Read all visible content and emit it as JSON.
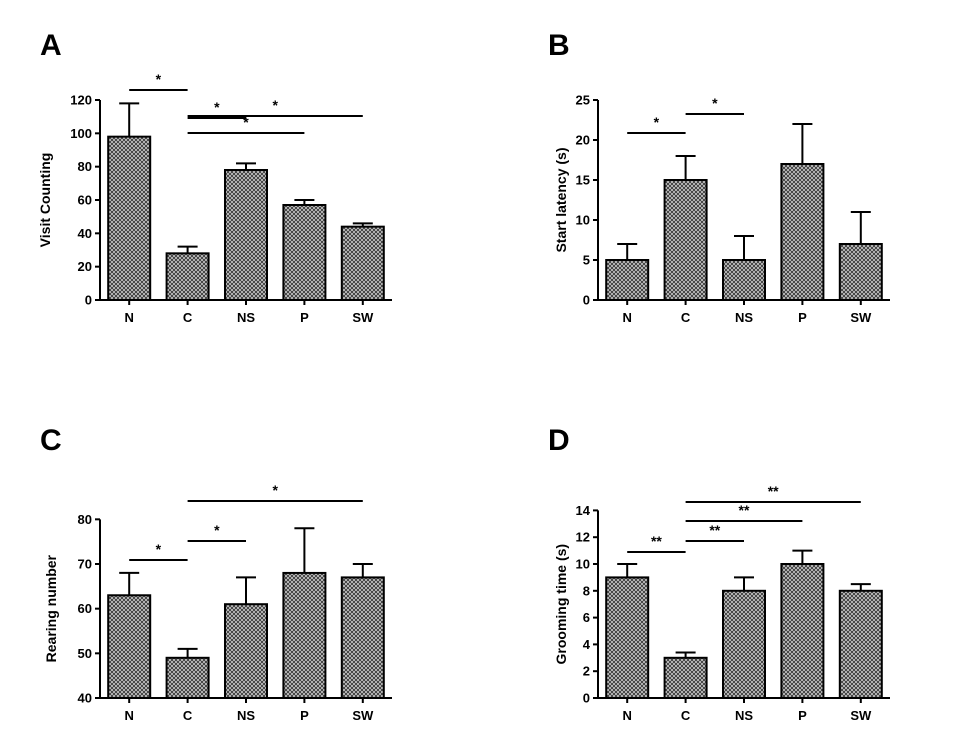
{
  "chart_data": [
    {
      "type": "bar",
      "panel_label": "A",
      "ylabel": "Visit Counting",
      "categories": [
        "N",
        "C",
        "NS",
        "P",
        "SW"
      ],
      "values": [
        98,
        28,
        78,
        57,
        44
      ],
      "errors": [
        20,
        4,
        4,
        3,
        2
      ],
      "ylim": [
        0,
        120
      ],
      "yticks": [
        "0",
        "20",
        "40",
        "60",
        "80",
        "100",
        "120"
      ],
      "significance": [
        {
          "from": "N",
          "to": "C",
          "label": "*"
        },
        {
          "from": "C",
          "to": "NS",
          "label": "*"
        },
        {
          "from": "C",
          "to": "P",
          "label": "*"
        },
        {
          "from": "C",
          "to": "SW",
          "label": "*"
        }
      ]
    },
    {
      "type": "bar",
      "panel_label": "B",
      "ylabel": "Start latency (s)",
      "categories": [
        "N",
        "C",
        "NS",
        "P",
        "SW"
      ],
      "values": [
        5,
        15,
        5,
        17,
        7
      ],
      "errors": [
        2,
        3,
        3,
        5,
        4
      ],
      "ylim": [
        0,
        25
      ],
      "yticks": [
        "0",
        "5",
        "10",
        "15",
        "20",
        "25"
      ],
      "significance": [
        {
          "from": "N",
          "to": "C",
          "label": "*"
        },
        {
          "from": "C",
          "to": "NS",
          "label": "*"
        }
      ]
    },
    {
      "type": "bar",
      "panel_label": "C",
      "ylabel": "Rearing number",
      "categories": [
        "N",
        "C",
        "NS",
        "P",
        "SW"
      ],
      "values": [
        63,
        49,
        61,
        68,
        67
      ],
      "errors": [
        5,
        2,
        6,
        10,
        3
      ],
      "ylim": [
        40,
        85
      ],
      "yticks": [
        "40",
        "50",
        "60",
        "70",
        "80"
      ],
      "significance": [
        {
          "from": "N",
          "to": "C",
          "label": "*"
        },
        {
          "from": "C",
          "to": "NS",
          "label": "*"
        },
        {
          "from": "C",
          "to": "SW",
          "label": "*"
        }
      ]
    },
    {
      "type": "bar",
      "panel_label": "D",
      "ylabel": "Grooming time (s)",
      "categories": [
        "N",
        "C",
        "NS",
        "P",
        "SW"
      ],
      "values": [
        9,
        3,
        8,
        10,
        8
      ],
      "errors": [
        1,
        0.4,
        1,
        1,
        0.5
      ],
      "ylim": [
        0,
        15
      ],
      "yticks": [
        "0",
        "2",
        "4",
        "6",
        "8",
        "10",
        "12",
        "14"
      ],
      "significance": [
        {
          "from": "N",
          "to": "C",
          "label": "**"
        },
        {
          "from": "C",
          "to": "NS",
          "label": "**"
        },
        {
          "from": "C",
          "to": "P",
          "label": "**"
        },
        {
          "from": "C",
          "to": "SW",
          "label": "**"
        }
      ]
    }
  ]
}
